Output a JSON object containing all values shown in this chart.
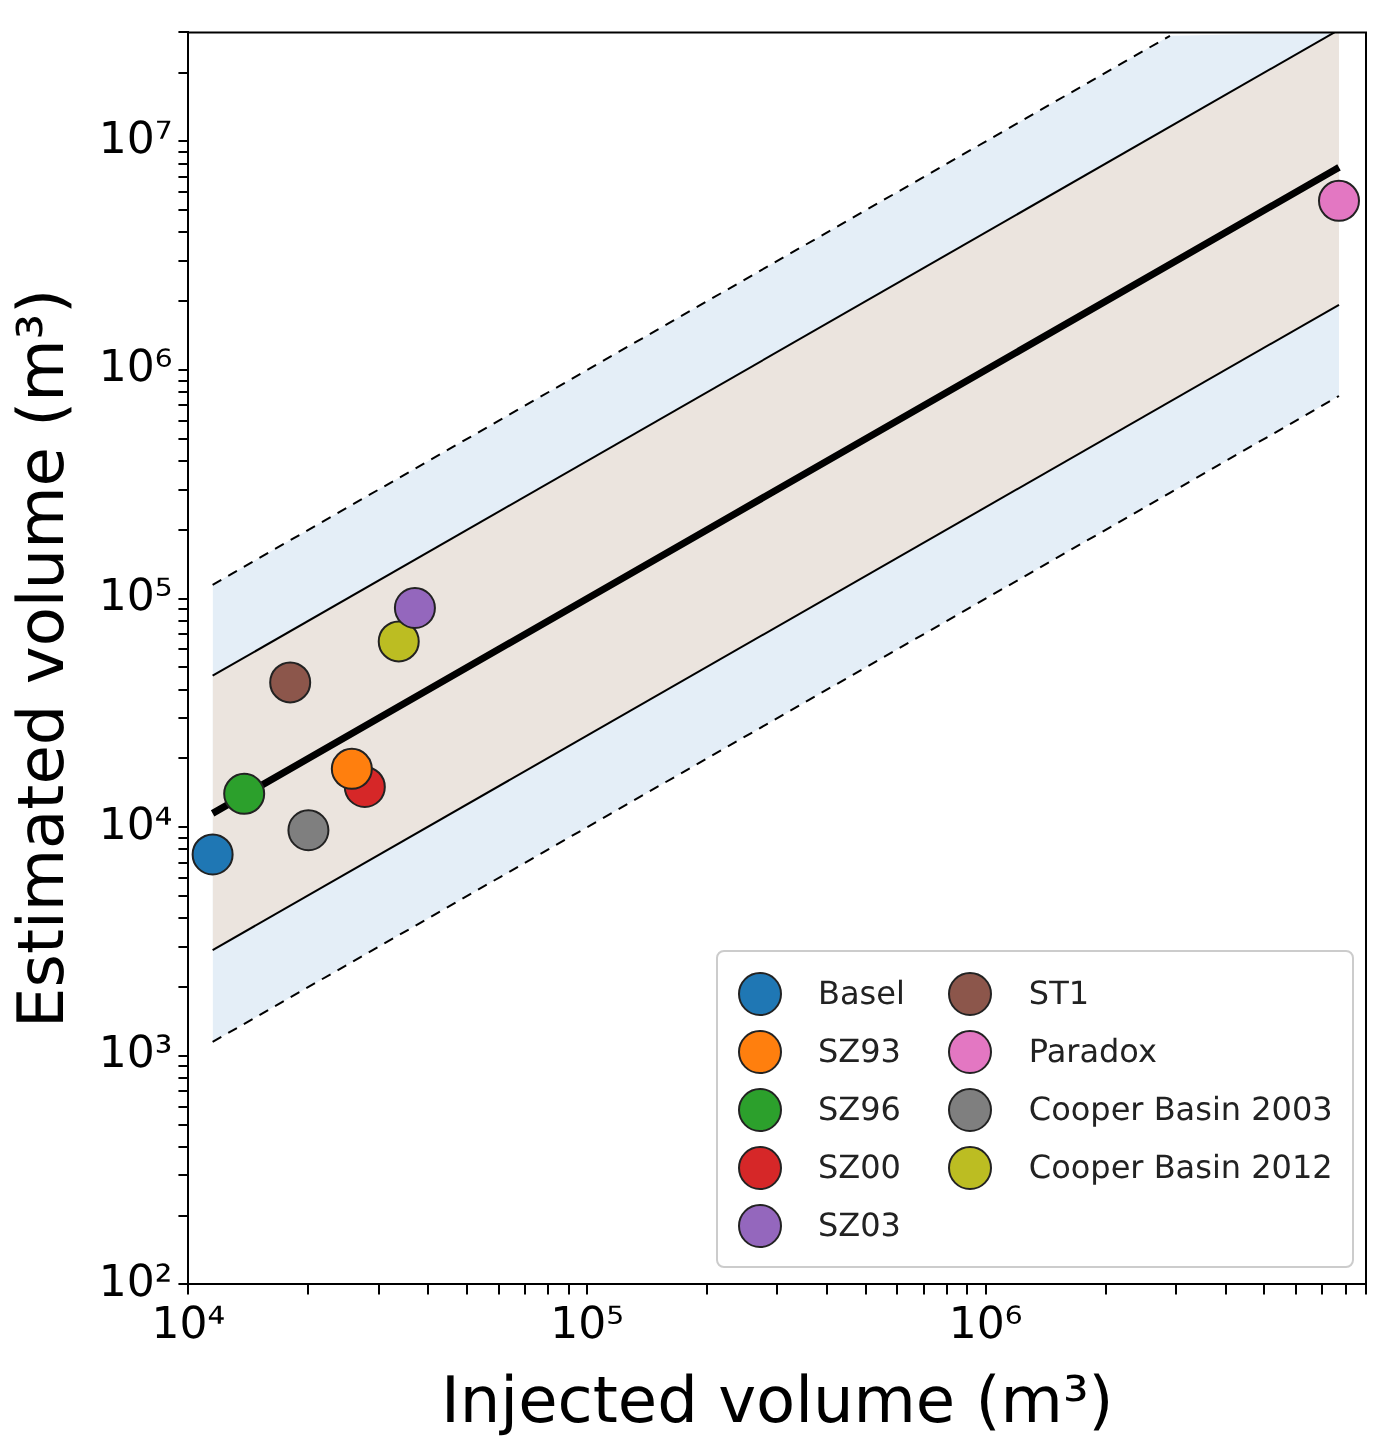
{
  "chart_data": {
    "type": "scatter",
    "xlabel": "Injected volume (m³)",
    "ylabel": "Estimated volume (m³)",
    "log": "xy",
    "grid": false,
    "legend": "lower right",
    "marker": "circle",
    "xlim": [
      10000,
      9000000
    ],
    "ylim": [
      100,
      30000000
    ],
    "xticks": [
      {
        "value": 10000,
        "label": "10⁴"
      },
      {
        "value": 20000,
        "label": null
      },
      {
        "value": 30000,
        "label": null
      },
      {
        "value": 40000,
        "label": null
      },
      {
        "value": 50000,
        "label": null
      },
      {
        "value": 60000,
        "label": null
      },
      {
        "value": 70000,
        "label": null
      },
      {
        "value": 80000,
        "label": null
      },
      {
        "value": 90000,
        "label": null
      },
      {
        "value": 100000,
        "label": "10⁵"
      },
      {
        "value": 200000,
        "label": null
      },
      {
        "value": 300000,
        "label": null
      },
      {
        "value": 400000,
        "label": null
      },
      {
        "value": 500000,
        "label": null
      },
      {
        "value": 600000,
        "label": null
      },
      {
        "value": 700000,
        "label": null
      },
      {
        "value": 800000,
        "label": null
      },
      {
        "value": 900000,
        "label": null
      },
      {
        "value": 1000000,
        "label": "10⁶"
      },
      {
        "value": 2000000,
        "label": null
      },
      {
        "value": 3000000,
        "label": null
      },
      {
        "value": 4000000,
        "label": null
      },
      {
        "value": 5000000,
        "label": null
      },
      {
        "value": 6000000,
        "label": null
      },
      {
        "value": 7000000,
        "label": null
      },
      {
        "value": 8000000,
        "label": null
      },
      {
        "value": 9000000,
        "label": null
      }
    ],
    "yticks": [
      {
        "value": 100,
        "label": "10²"
      },
      {
        "value": 200,
        "label": null
      },
      {
        "value": 300,
        "label": null
      },
      {
        "value": 400,
        "label": null
      },
      {
        "value": 500,
        "label": null
      },
      {
        "value": 600,
        "label": null
      },
      {
        "value": 700,
        "label": null
      },
      {
        "value": 800,
        "label": null
      },
      {
        "value": 900,
        "label": null
      },
      {
        "value": 1000,
        "label": "10³"
      },
      {
        "value": 2000,
        "label": null
      },
      {
        "value": 3000,
        "label": null
      },
      {
        "value": 4000,
        "label": null
      },
      {
        "value": 5000,
        "label": null
      },
      {
        "value": 6000,
        "label": null
      },
      {
        "value": 7000,
        "label": null
      },
      {
        "value": 8000,
        "label": null
      },
      {
        "value": 9000,
        "label": null
      },
      {
        "value": 10000,
        "label": "10⁴"
      },
      {
        "value": 20000,
        "label": null
      },
      {
        "value": 30000,
        "label": null
      },
      {
        "value": 40000,
        "label": null
      },
      {
        "value": 50000,
        "label": null
      },
      {
        "value": 60000,
        "label": null
      },
      {
        "value": 70000,
        "label": null
      },
      {
        "value": 80000,
        "label": null
      },
      {
        "value": 90000,
        "label": null
      },
      {
        "value": 100000,
        "label": "10⁵"
      },
      {
        "value": 200000,
        "label": null
      },
      {
        "value": 300000,
        "label": null
      },
      {
        "value": 400000,
        "label": null
      },
      {
        "value": 500000,
        "label": null
      },
      {
        "value": 600000,
        "label": null
      },
      {
        "value": 700000,
        "label": null
      },
      {
        "value": 800000,
        "label": null
      },
      {
        "value": 900000,
        "label": null
      },
      {
        "value": 1000000,
        "label": "10⁶"
      },
      {
        "value": 2000000,
        "label": null
      },
      {
        "value": 3000000,
        "label": null
      },
      {
        "value": 4000000,
        "label": null
      },
      {
        "value": 5000000,
        "label": null
      },
      {
        "value": 6000000,
        "label": null
      },
      {
        "value": 7000000,
        "label": null
      },
      {
        "value": 8000000,
        "label": null
      },
      {
        "value": 9000000,
        "label": null
      },
      {
        "value": 10000000,
        "label": "10⁷"
      },
      {
        "value": 20000000,
        "label": null
      },
      {
        "value": 30000000,
        "label": null
      }
    ],
    "series": [
      {
        "type": "line",
        "marker": "none",
        "line_style": "dashed",
        "color": "#000000",
        "x": [
          11500,
          2900000,
          7700000
        ],
        "values": [
          1150,
          290000,
          770000
        ],
        "lower": [
          1150,
          290000,
          770000
        ],
        "upper": [
          115000,
          29000000,
          30000000
        ]
      },
      {
        "type": "line",
        "marker": "none",
        "line_style": "dashed",
        "color": "#000000",
        "x": [
          11500,
          2900000
        ],
        "values": [
          115000,
          29000000
        ]
      },
      {
        "type": "line",
        "marker": "none",
        "line_style": "solid",
        "color": "#000000",
        "x": [
          11500,
          7700000
        ],
        "values": [
          2900,
          1930000
        ]
      },
      {
        "type": "line",
        "marker": "none",
        "line_style": "solid",
        "color": "#000000",
        "x": [
          11500,
          7500000
        ],
        "values": [
          46000,
          30000000
        ]
      },
      {
        "type": "line",
        "marker": "none",
        "line_style": "solid",
        "color": "#000000",
        "x": [
          11500,
          7500000,
          7700000
        ],
        "values": [
          11500,
          7500000,
          7700000
        ],
        "lower": [
          2900,
          1880000,
          1930000
        ],
        "upper": [
          46000,
          30000000,
          30000000
        ]
      },
      {
        "name": "Basel",
        "color": "#1f77b4",
        "x": [
          11500
        ],
        "values": [
          7600
        ]
      },
      {
        "name": "SZ93",
        "color": "#ff7f0e",
        "x": [
          25700
        ],
        "values": [
          18000
        ]
      },
      {
        "name": "SZ96",
        "color": "#2ca02c",
        "x": [
          13800
        ],
        "values": [
          14000
        ]
      },
      {
        "name": "SZ00",
        "color": "#d62728",
        "x": [
          27700
        ],
        "values": [
          15000
        ]
      },
      {
        "name": "SZ03",
        "color": "#9467bd",
        "x": [
          37000
        ],
        "values": [
          91000
        ]
      },
      {
        "name": "ST1",
        "color": "#8c564b",
        "x": [
          18000
        ],
        "values": [
          43000
        ]
      },
      {
        "name": "Paradox",
        "color": "#e377c2",
        "x": [
          7700000
        ],
        "values": [
          5500000
        ]
      },
      {
        "name": "Cooper Basin 2003",
        "color": "#7f7f7f",
        "x": [
          20000
        ],
        "values": [
          9700
        ]
      },
      {
        "name": "Cooper Basin 2012",
        "color": "#bcbd22",
        "x": [
          33700
        ],
        "values": [
          65000
        ]
      }
    ]
  }
}
